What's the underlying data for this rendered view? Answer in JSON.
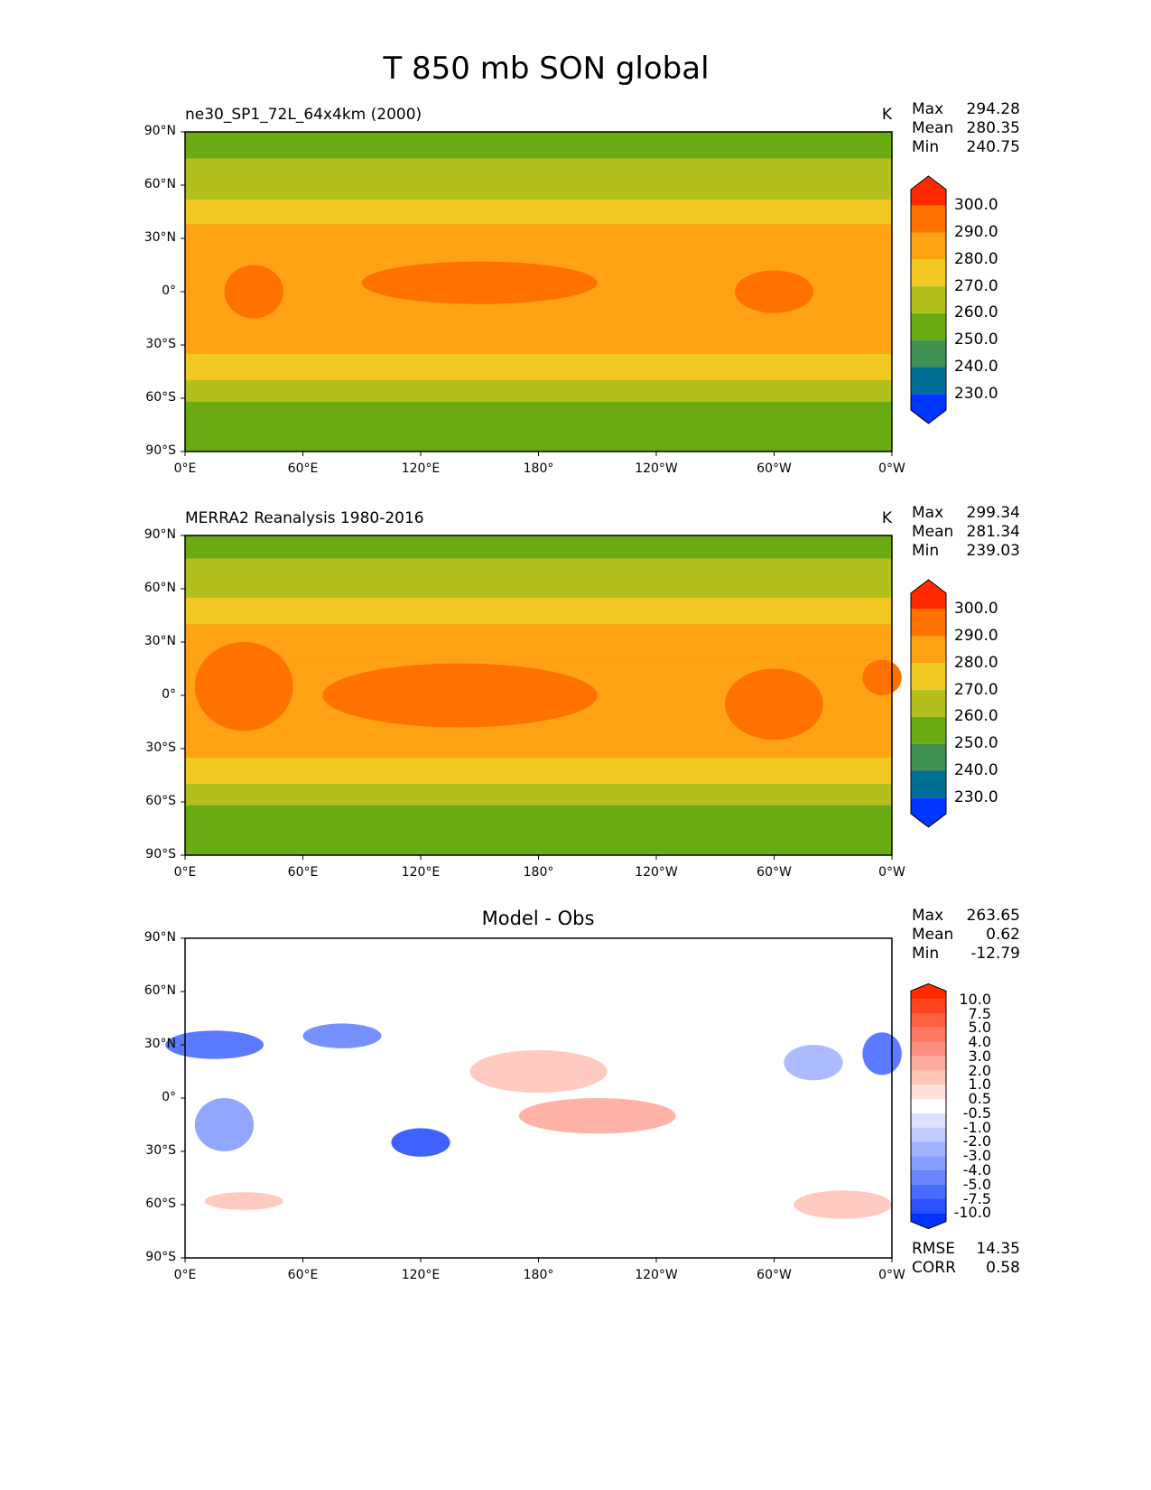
{
  "chart_data": {
    "type": "heatmap",
    "title": "T 850 mb SON global",
    "x_ticks": [
      "0°E",
      "60°E",
      "120°E",
      "180°",
      "120°W",
      "60°W",
      "0°W"
    ],
    "y_ticks": [
      "90°N",
      "60°N",
      "30°N",
      "0°",
      "30°S",
      "60°S",
      "90°S"
    ],
    "xlim": [
      0,
      360
    ],
    "ylim": [
      -90,
      90
    ],
    "panels": [
      {
        "title_left": "ne30_SP1_72L_64x4km (2000)",
        "units": "K",
        "stats": [
          [
            "Max",
            "294.28"
          ],
          [
            "Mean",
            "280.35"
          ],
          [
            "Min",
            "240.75"
          ]
        ],
        "levels": [
          "300.0",
          "290.0",
          "280.0",
          "270.0",
          "260.0",
          "250.0",
          "240.0",
          "230.0"
        ],
        "colors": [
          "#ff2a00",
          "#ff7200",
          "#ffa314",
          "#f2c923",
          "#b3bf1d",
          "#6aab13",
          "#3e9150",
          "#006f98",
          "#0036ff"
        ],
        "zonal_bands": [
          [
            90,
            75,
            5
          ],
          [
            75,
            52,
            4
          ],
          [
            52,
            38,
            3
          ],
          [
            38,
            15,
            2
          ],
          [
            15,
            -15,
            2
          ],
          [
            -15,
            -35,
            2
          ],
          [
            -35,
            -50,
            3
          ],
          [
            -50,
            -62,
            4
          ],
          [
            -62,
            -72,
            5
          ]
        ],
        "warm_blobs": [
          [
            150,
            5,
            60,
            12
          ],
          [
            300,
            0,
            20,
            12
          ],
          [
            35,
            0,
            15,
            15
          ]
        ]
      },
      {
        "title_left": "MERRA2 Reanalysis 1980-2016",
        "units": "K",
        "stats": [
          [
            "Max",
            "299.34"
          ],
          [
            "Mean",
            "281.34"
          ],
          [
            "Min",
            "239.03"
          ]
        ],
        "levels": [
          "300.0",
          "290.0",
          "280.0",
          "270.0",
          "260.0",
          "250.0",
          "240.0",
          "230.0"
        ],
        "colors": [
          "#ff2a00",
          "#ff7200",
          "#ffa314",
          "#f2c923",
          "#b3bf1d",
          "#6aab13",
          "#3e9150",
          "#006f98",
          "#0036ff"
        ],
        "zonal_bands": [
          [
            90,
            77,
            5
          ],
          [
            77,
            55,
            4
          ],
          [
            55,
            40,
            3
          ],
          [
            40,
            20,
            2
          ],
          [
            20,
            -15,
            2
          ],
          [
            -15,
            -35,
            2
          ],
          [
            -35,
            -50,
            3
          ],
          [
            -50,
            -62,
            4
          ],
          [
            -62,
            -72,
            5
          ]
        ],
        "warm_blobs": [
          [
            140,
            0,
            70,
            18
          ],
          [
            300,
            -5,
            25,
            20
          ],
          [
            30,
            5,
            25,
            25
          ],
          [
            355,
            10,
            10,
            10
          ]
        ]
      },
      {
        "title_center": "Model - Obs",
        "units": "",
        "stats": [
          [
            "Max",
            "263.65"
          ],
          [
            "Mean",
            "0.62"
          ],
          [
            "Min",
            "-12.79"
          ]
        ],
        "levels": [
          "10.0",
          "7.5",
          "5.0",
          "4.0",
          "3.0",
          "2.0",
          "1.0",
          "0.5",
          "-0.5",
          "-1.0",
          "-2.0",
          "-3.0",
          "-4.0",
          "-5.0",
          "-7.5",
          "-10.0"
        ],
        "colors": [
          "#ff2a00",
          "#ff4520",
          "#ff6040",
          "#ff7860",
          "#ff9080",
          "#ffaa9c",
          "#ffc4b8",
          "#ffe0da",
          "#ffffff",
          "#dde3ff",
          "#c0ccff",
          "#a3b4ff",
          "#869cff",
          "#6884ff",
          "#4a6cff",
          "#2a50ff",
          "#0033ff"
        ],
        "zonal_bands": [],
        "anomaly_blobs": [
          [
            15,
            30,
            25,
            8,
            14
          ],
          [
            120,
            -25,
            15,
            8,
            15
          ],
          [
            80,
            35,
            20,
            7,
            13
          ],
          [
            180,
            15,
            35,
            12,
            6
          ],
          [
            210,
            -10,
            40,
            10,
            5
          ],
          [
            320,
            20,
            15,
            10,
            11
          ],
          [
            355,
            25,
            10,
            12,
            14
          ],
          [
            20,
            -15,
            15,
            15,
            12
          ],
          [
            335,
            -60,
            25,
            8,
            6
          ],
          [
            30,
            -58,
            20,
            5,
            6
          ]
        ]
      }
    ],
    "footer_stats": [
      [
        "RMSE",
        "14.35"
      ],
      [
        "CORR",
        "0.58"
      ]
    ]
  }
}
